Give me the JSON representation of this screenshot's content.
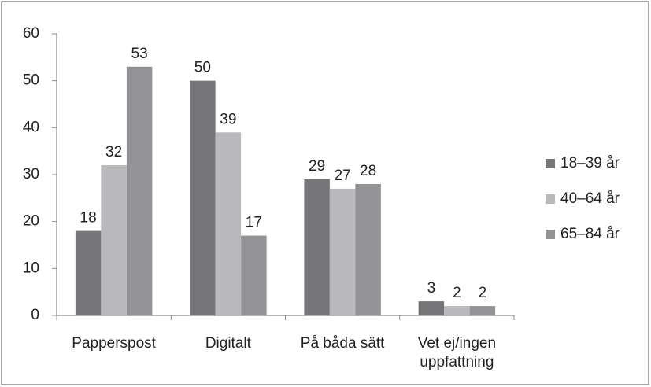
{
  "chart_data": {
    "type": "bar",
    "categories": [
      "Papperspost",
      "Digitalt",
      "På båda sätt",
      "Vet ej/ingen uppfattning"
    ],
    "series": [
      {
        "name": "18–39 år",
        "color": "#767679",
        "values": [
          18,
          50,
          29,
          3
        ]
      },
      {
        "name": "40–64 år",
        "color": "#b9b9bb",
        "values": [
          32,
          39,
          27,
          2
        ]
      },
      {
        "name": "65–84 år",
        "color": "#939396",
        "values": [
          53,
          17,
          28,
          2
        ]
      }
    ],
    "ylim": [
      0,
      60
    ],
    "yticks": [
      0,
      10,
      20,
      30,
      40,
      50,
      60
    ],
    "grid": false,
    "legend": "right"
  }
}
